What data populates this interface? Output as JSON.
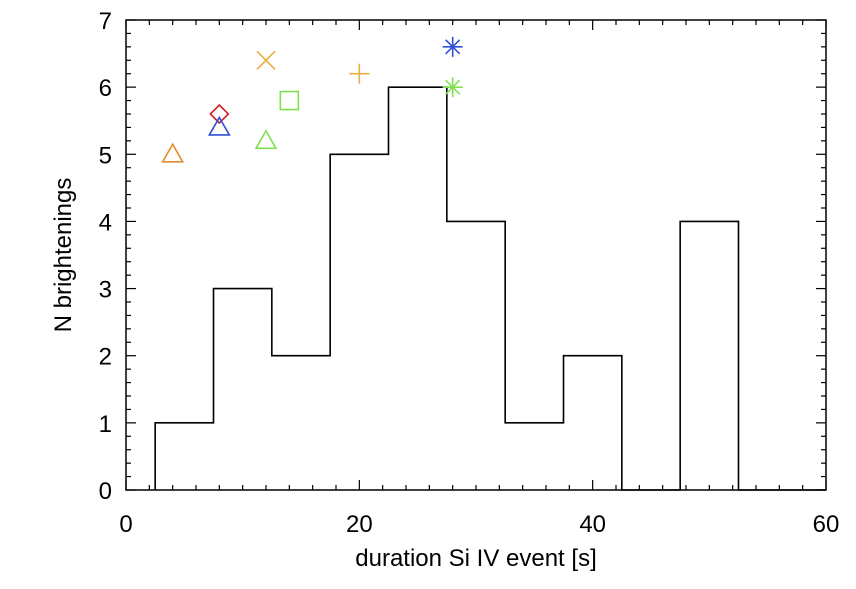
{
  "chart_data": {
    "type": "histogram",
    "title": "",
    "xlabel": "duration Si IV event [s]",
    "ylabel": "N brightenings",
    "xlim": [
      0,
      60
    ],
    "ylim": [
      0,
      7
    ],
    "x_ticks": [
      0,
      20,
      40,
      60
    ],
    "y_ticks": [
      0,
      1,
      2,
      3,
      4,
      5,
      6,
      7
    ],
    "histogram": {
      "bin_width": 5,
      "bin_edges": [
        2.5,
        7.5,
        12.5,
        17.5,
        22.5,
        27.5,
        32.5,
        37.5,
        42.5,
        47.5,
        52.5
      ],
      "counts": [
        1,
        3,
        2,
        5,
        6,
        4,
        1,
        2,
        0,
        4
      ],
      "color": "#000000"
    },
    "markers": [
      {
        "symbol": "triangle",
        "x": 4,
        "y": 5.0,
        "color": "#e08a2a"
      },
      {
        "symbol": "diamond",
        "x": 8,
        "y": 5.6,
        "color": "#d0202a"
      },
      {
        "symbol": "triangle",
        "x": 8,
        "y": 5.4,
        "color": "#3050d8"
      },
      {
        "symbol": "cross",
        "x": 12,
        "y": 6.4,
        "color": "#e8b040"
      },
      {
        "symbol": "triangle",
        "x": 12,
        "y": 5.2,
        "color": "#80e050"
      },
      {
        "symbol": "square",
        "x": 14,
        "y": 5.8,
        "color": "#80e050"
      },
      {
        "symbol": "plus",
        "x": 20,
        "y": 6.2,
        "color": "#e8b040"
      },
      {
        "symbol": "asterisk",
        "x": 28,
        "y": 6.6,
        "color": "#3050d8"
      },
      {
        "symbol": "asterisk",
        "x": 28,
        "y": 6.0,
        "color": "#80e050"
      }
    ]
  }
}
